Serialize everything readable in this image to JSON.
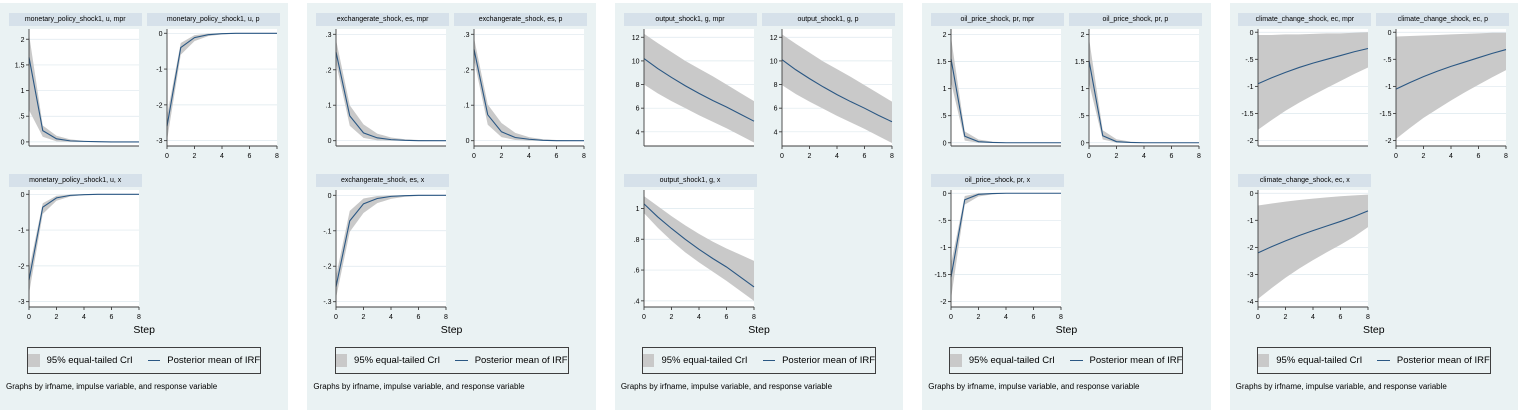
{
  "colors": {
    "panel_bg": "#eaf2f3",
    "title_bg": "#d6e1ea",
    "band": "#c9c9c9",
    "line": "#2a5783",
    "grid": "#dde8ee",
    "axis": "#3f3f3f"
  },
  "legend": {
    "ci_label": "95% equal-tailed CrI",
    "mean_label": "Posterior mean of IRF"
  },
  "xlabel": "Step",
  "caption": "Graphs by irfname, impulse variable, and response variable",
  "chart_data": {
    "type": "line",
    "x": [
      0,
      1,
      2,
      3,
      4,
      5,
      6,
      7,
      8
    ],
    "xticks": [
      0,
      2,
      4,
      6,
      8
    ],
    "legend_position": "bottom",
    "grid": true,
    "panels": [
      {
        "irfname": "monetary_policy_shock1",
        "impulse": "u",
        "charts": [
          {
            "title": "monetary_policy_shock1, u, mpr",
            "response": "mpr",
            "show_x": false,
            "ylim": [
              -0.08,
              2.2
            ],
            "yticks": [
              [
                "0",
                0
              ],
              [
                ".5",
                0.5
              ],
              [
                "1",
                1
              ],
              [
                "1.5",
                1.5
              ],
              [
                "2",
                2
              ]
            ],
            "mean": [
              1.65,
              0.22,
              0.06,
              0.02,
              0.01,
              0.005,
              0,
              0,
              0
            ],
            "lo": [
              0.62,
              0.1,
              0.01,
              0,
              0,
              0,
              0,
              0,
              0
            ],
            "hi": [
              2.1,
              0.32,
              0.12,
              0.05,
              0.02,
              0.01,
              0.005,
              0,
              0
            ]
          },
          {
            "title": "monetary_policy_shock1, u, p",
            "response": "p",
            "show_x": true,
            "ylim": [
              -3.15,
              0.12
            ],
            "yticks": [
              [
                "0",
                0
              ],
              [
                "-1",
                -1
              ],
              [
                "-2",
                -2
              ],
              [
                "-3",
                -3
              ]
            ],
            "mean": [
              -2.6,
              -0.4,
              -0.12,
              -0.04,
              -0.01,
              0,
              0,
              0,
              0
            ],
            "lo": [
              -3.0,
              -0.6,
              -0.22,
              -0.08,
              -0.03,
              -0.01,
              0,
              0,
              0
            ],
            "hi": [
              -2.3,
              -0.27,
              -0.05,
              -0.01,
              0,
              0,
              0,
              0,
              0
            ]
          },
          {
            "title": "monetary_policy_shock1, u, x",
            "response": "x",
            "show_x": true,
            "ylim": [
              -3.15,
              0.12
            ],
            "yticks": [
              [
                "0",
                0
              ],
              [
                "-1",
                -1
              ],
              [
                "-2",
                -2
              ],
              [
                "-3",
                -3
              ]
            ],
            "mean": [
              -2.4,
              -0.36,
              -0.1,
              -0.03,
              -0.01,
              0,
              0,
              0,
              0
            ],
            "lo": [
              -2.78,
              -0.55,
              -0.18,
              -0.06,
              -0.02,
              -0.01,
              0,
              0,
              0
            ],
            "hi": [
              -2.1,
              -0.25,
              -0.04,
              -0.01,
              0,
              0,
              0,
              0,
              0
            ]
          }
        ]
      },
      {
        "irfname": "exchangerate_shock",
        "impulse": "es",
        "charts": [
          {
            "title": "exchangerate_shock, es, mpr",
            "response": "mpr",
            "show_x": false,
            "ylim": [
              -0.015,
              0.315
            ],
            "yticks": [
              [
                "0",
                0
              ],
              [
                ".1",
                0.1
              ],
              [
                ".2",
                0.2
              ],
              [
                ".3",
                0.3
              ]
            ],
            "mean": [
              0.25,
              0.07,
              0.022,
              0.008,
              0.003,
              0.001,
              0,
              0,
              0
            ],
            "lo": [
              0.22,
              0.042,
              0.008,
              0.001,
              0,
              0,
              0,
              0,
              0
            ],
            "hi": [
              0.285,
              0.1,
              0.046,
              0.02,
              0.009,
              0.004,
              0.002,
              0.001,
              0
            ]
          },
          {
            "title": "exchangerate_shock, es, p",
            "response": "p",
            "show_x": true,
            "ylim": [
              -0.015,
              0.315
            ],
            "yticks": [
              [
                "0",
                0
              ],
              [
                ".1",
                0.1
              ],
              [
                ".2",
                0.2
              ],
              [
                ".3",
                0.3
              ]
            ],
            "mean": [
              0.258,
              0.073,
              0.025,
              0.009,
              0.004,
              0.001,
              0,
              0,
              0
            ],
            "lo": [
              0.228,
              0.045,
              0.01,
              0.002,
              0,
              0,
              0,
              0,
              0
            ],
            "hi": [
              0.29,
              0.102,
              0.05,
              0.022,
              0.01,
              0.004,
              0.002,
              0.001,
              0
            ]
          },
          {
            "title": "exchangerate_shock, es, x",
            "response": "x",
            "show_x": true,
            "ylim": [
              -0.315,
              0.015
            ],
            "yticks": [
              [
                "0",
                0
              ],
              [
                "-.1",
                -0.1
              ],
              [
                "-.2",
                -0.2
              ],
              [
                "-.3",
                -0.3
              ]
            ],
            "mean": [
              -0.258,
              -0.072,
              -0.024,
              -0.009,
              -0.003,
              -0.001,
              0,
              0,
              0
            ],
            "lo": [
              -0.29,
              -0.103,
              -0.05,
              -0.022,
              -0.01,
              -0.004,
              -0.002,
              -0.001,
              0
            ],
            "hi": [
              -0.228,
              -0.044,
              -0.009,
              -0.002,
              0,
              0,
              0,
              0,
              0
            ]
          }
        ]
      },
      {
        "irfname": "output_shock1",
        "impulse": "g",
        "charts": [
          {
            "title": "output_shock1, g, mpr",
            "response": "mpr",
            "show_x": false,
            "ylim": [
              2.8,
              12.7
            ],
            "yticks": [
              [
                "4",
                4
              ],
              [
                "6",
                6
              ],
              [
                "8",
                8
              ],
              [
                "10",
                10
              ],
              [
                "12",
                12
              ]
            ],
            "mean": [
              10.2,
              9.35,
              8.6,
              7.9,
              7.25,
              6.65,
              6.1,
              5.5,
              4.9
            ],
            "lo": [
              8.0,
              7.25,
              6.6,
              6.0,
              5.4,
              4.85,
              4.3,
              3.7,
              3.1
            ],
            "hi": [
              12.3,
              11.5,
              10.75,
              10.0,
              9.35,
              8.7,
              8.0,
              7.3,
              6.6
            ]
          },
          {
            "title": "output_shock1, g, p",
            "response": "p",
            "show_x": true,
            "ylim": [
              2.8,
              12.7
            ],
            "yticks": [
              [
                "4",
                4
              ],
              [
                "6",
                6
              ],
              [
                "8",
                8
              ],
              [
                "10",
                10
              ],
              [
                "12",
                12
              ]
            ],
            "mean": [
              10.1,
              9.25,
              8.5,
              7.8,
              7.15,
              6.55,
              6.0,
              5.4,
              4.85
            ],
            "lo": [
              7.95,
              7.2,
              6.55,
              5.95,
              5.35,
              4.8,
              4.25,
              3.65,
              3.05
            ],
            "hi": [
              12.25,
              11.45,
              10.7,
              9.95,
              9.3,
              8.65,
              7.95,
              7.25,
              6.55
            ]
          },
          {
            "title": "output_shock1, g, x",
            "response": "x",
            "show_x": true,
            "ylim": [
              0.36,
              1.12
            ],
            "yticks": [
              [
                ".4",
                0.4
              ],
              [
                ".6",
                0.6
              ],
              [
                ".8",
                0.8
              ],
              [
                "1",
                1
              ]
            ],
            "mean": [
              1.03,
              0.945,
              0.87,
              0.8,
              0.735,
              0.675,
              0.62,
              0.555,
              0.49
            ],
            "lo": [
              0.97,
              0.875,
              0.79,
              0.715,
              0.65,
              0.59,
              0.53,
              0.465,
              0.4
            ],
            "hi": [
              1.08,
              1.015,
              0.95,
              0.89,
              0.835,
              0.785,
              0.74,
              0.7,
              0.66
            ]
          }
        ]
      },
      {
        "irfname": "oil_price_shock",
        "impulse": "pr",
        "charts": [
          {
            "title": "oil_price_shock, pr, mpr",
            "response": "mpr",
            "show_x": false,
            "ylim": [
              -0.06,
              2.1
            ],
            "yticks": [
              [
                "0",
                0
              ],
              [
                ".5",
                0.5
              ],
              [
                "1",
                1
              ],
              [
                "1.5",
                1.5
              ],
              [
                "2",
                2
              ]
            ],
            "mean": [
              1.55,
              0.12,
              0.02,
              0.005,
              0,
              0,
              0,
              0,
              0
            ],
            "lo": [
              1.12,
              0.04,
              0,
              0,
              0,
              0,
              0,
              0,
              0
            ],
            "hi": [
              1.95,
              0.21,
              0.06,
              0.02,
              0.005,
              0,
              0,
              0,
              0
            ]
          },
          {
            "title": "oil_price_shock, pr, p",
            "response": "p",
            "show_x": true,
            "ylim": [
              -0.06,
              2.1
            ],
            "yticks": [
              [
                "0",
                0
              ],
              [
                ".5",
                0.5
              ],
              [
                "1",
                1
              ],
              [
                "1.5",
                1.5
              ],
              [
                "2",
                2
              ]
            ],
            "mean": [
              1.52,
              0.13,
              0.02,
              0.005,
              0,
              0,
              0,
              0,
              0
            ],
            "lo": [
              1.1,
              0.06,
              0.002,
              0,
              0,
              0,
              0,
              0,
              0
            ],
            "hi": [
              1.93,
              0.23,
              0.065,
              0.02,
              0.005,
              0,
              0,
              0,
              0
            ]
          },
          {
            "title": "oil_price_shock, pr, x",
            "response": "x",
            "show_x": true,
            "ylim": [
              -2.1,
              0.06
            ],
            "yticks": [
              [
                "0",
                0
              ],
              [
                "-.5",
                -0.5
              ],
              [
                "-1",
                -1
              ],
              [
                "-1.5",
                -1.5
              ],
              [
                "-2",
                -2
              ]
            ],
            "mean": [
              -1.55,
              -0.12,
              -0.02,
              -0.005,
              0,
              0,
              0,
              0,
              0
            ],
            "lo": [
              -1.95,
              -0.21,
              -0.06,
              -0.02,
              -0.005,
              0,
              0,
              0,
              0
            ],
            "hi": [
              -1.3,
              -0.05,
              0,
              0,
              0,
              0,
              0,
              0,
              0
            ]
          }
        ]
      },
      {
        "irfname": "climate_change_shock",
        "impulse": "ec",
        "charts": [
          {
            "title": "climate_change_shock, ec, mpr",
            "response": "mpr",
            "show_x": false,
            "ylim": [
              -2.1,
              0.06
            ],
            "yticks": [
              [
                "0",
                0
              ],
              [
                "-.5",
                -0.5
              ],
              [
                "-1",
                -1
              ],
              [
                "-1.5",
                -1.5
              ],
              [
                "-2",
                -2
              ]
            ],
            "mean": [
              -0.95,
              -0.84,
              -0.74,
              -0.65,
              -0.57,
              -0.5,
              -0.43,
              -0.36,
              -0.3
            ],
            "lo": [
              -1.8,
              -1.62,
              -1.45,
              -1.3,
              -1.16,
              -1.03,
              -0.9,
              -0.77,
              -0.65
            ],
            "hi": [
              -0.05,
              -0.05,
              -0.04,
              -0.04,
              -0.03,
              -0.02,
              -0.02,
              -0.01,
              0
            ]
          },
          {
            "title": "climate_change_shock, ec, p",
            "response": "p",
            "show_x": true,
            "ylim": [
              -2.1,
              0.06
            ],
            "yticks": [
              [
                "0",
                0
              ],
              [
                "-.5",
                -0.5
              ],
              [
                "-1",
                -1
              ],
              [
                "-1.5",
                -1.5
              ],
              [
                "-2",
                -2
              ]
            ],
            "mean": [
              -1.05,
              -0.93,
              -0.82,
              -0.72,
              -0.63,
              -0.55,
              -0.47,
              -0.39,
              -0.32
            ],
            "lo": [
              -1.97,
              -1.77,
              -1.58,
              -1.42,
              -1.26,
              -1.11,
              -0.97,
              -0.83,
              -0.7
            ],
            "hi": [
              -0.08,
              -0.07,
              -0.06,
              -0.05,
              -0.04,
              -0.03,
              -0.02,
              -0.01,
              -0.01
            ]
          },
          {
            "title": "climate_change_shock, ec, x",
            "response": "x",
            "show_x": true,
            "ylim": [
              -4.2,
              0.12
            ],
            "yticks": [
              [
                "0",
                0
              ],
              [
                "-1",
                -1
              ],
              [
                "-2",
                -2
              ],
              [
                "-3",
                -3
              ],
              [
                "-4",
                -4
              ]
            ],
            "mean": [
              -2.2,
              -1.97,
              -1.76,
              -1.56,
              -1.38,
              -1.21,
              -1.04,
              -0.86,
              -0.65
            ],
            "lo": [
              -3.9,
              -3.5,
              -3.12,
              -2.78,
              -2.47,
              -2.18,
              -1.9,
              -1.6,
              -1.25
            ],
            "hi": [
              -0.45,
              -0.38,
              -0.31,
              -0.25,
              -0.2,
              -0.15,
              -0.11,
              -0.08,
              -0.05
            ]
          }
        ]
      }
    ]
  }
}
